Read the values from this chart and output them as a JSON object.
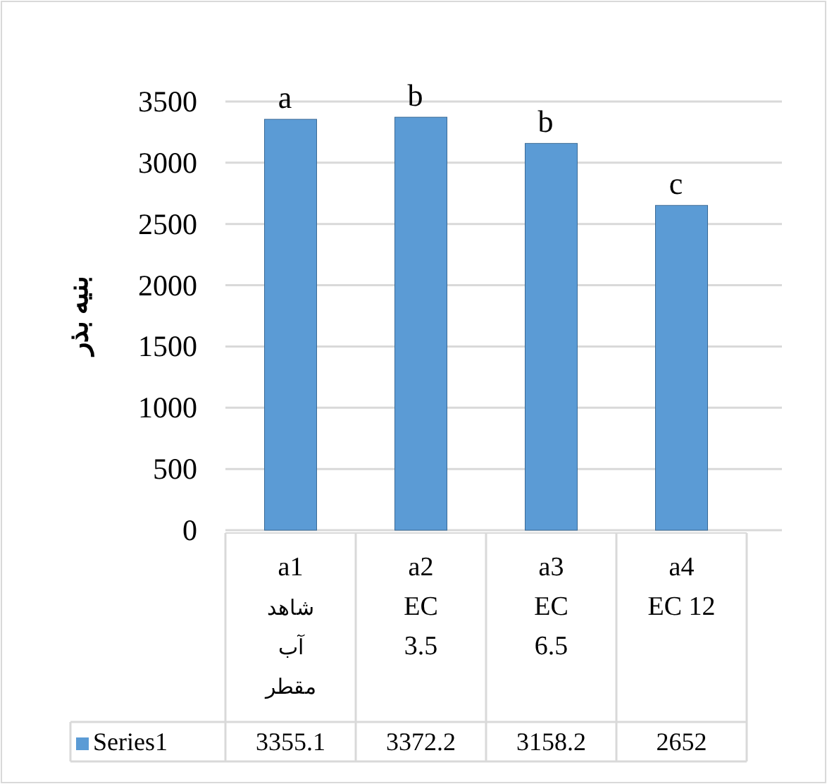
{
  "chart_data": {
    "type": "bar",
    "ylabel": "بنیه بذر",
    "categories": [
      "a1\nشاهد\nآب\nمقطر",
      "a2\nEC\n3.5",
      "a3\nEC\n6.5",
      "a4\nEC 12"
    ],
    "series": [
      {
        "name": "Series1",
        "color": "#5b9bd5",
        "values": [
          3355.1,
          3372.2,
          3158.2,
          2652
        ]
      }
    ],
    "ylim": [
      0,
      3500
    ],
    "yticks": [
      0,
      500,
      1000,
      1500,
      2000,
      2500,
      3000,
      3500
    ],
    "grid": "y",
    "data_labels": true,
    "legend": "bottom",
    "annotations": [
      "a",
      "b",
      "b",
      "c"
    ]
  }
}
